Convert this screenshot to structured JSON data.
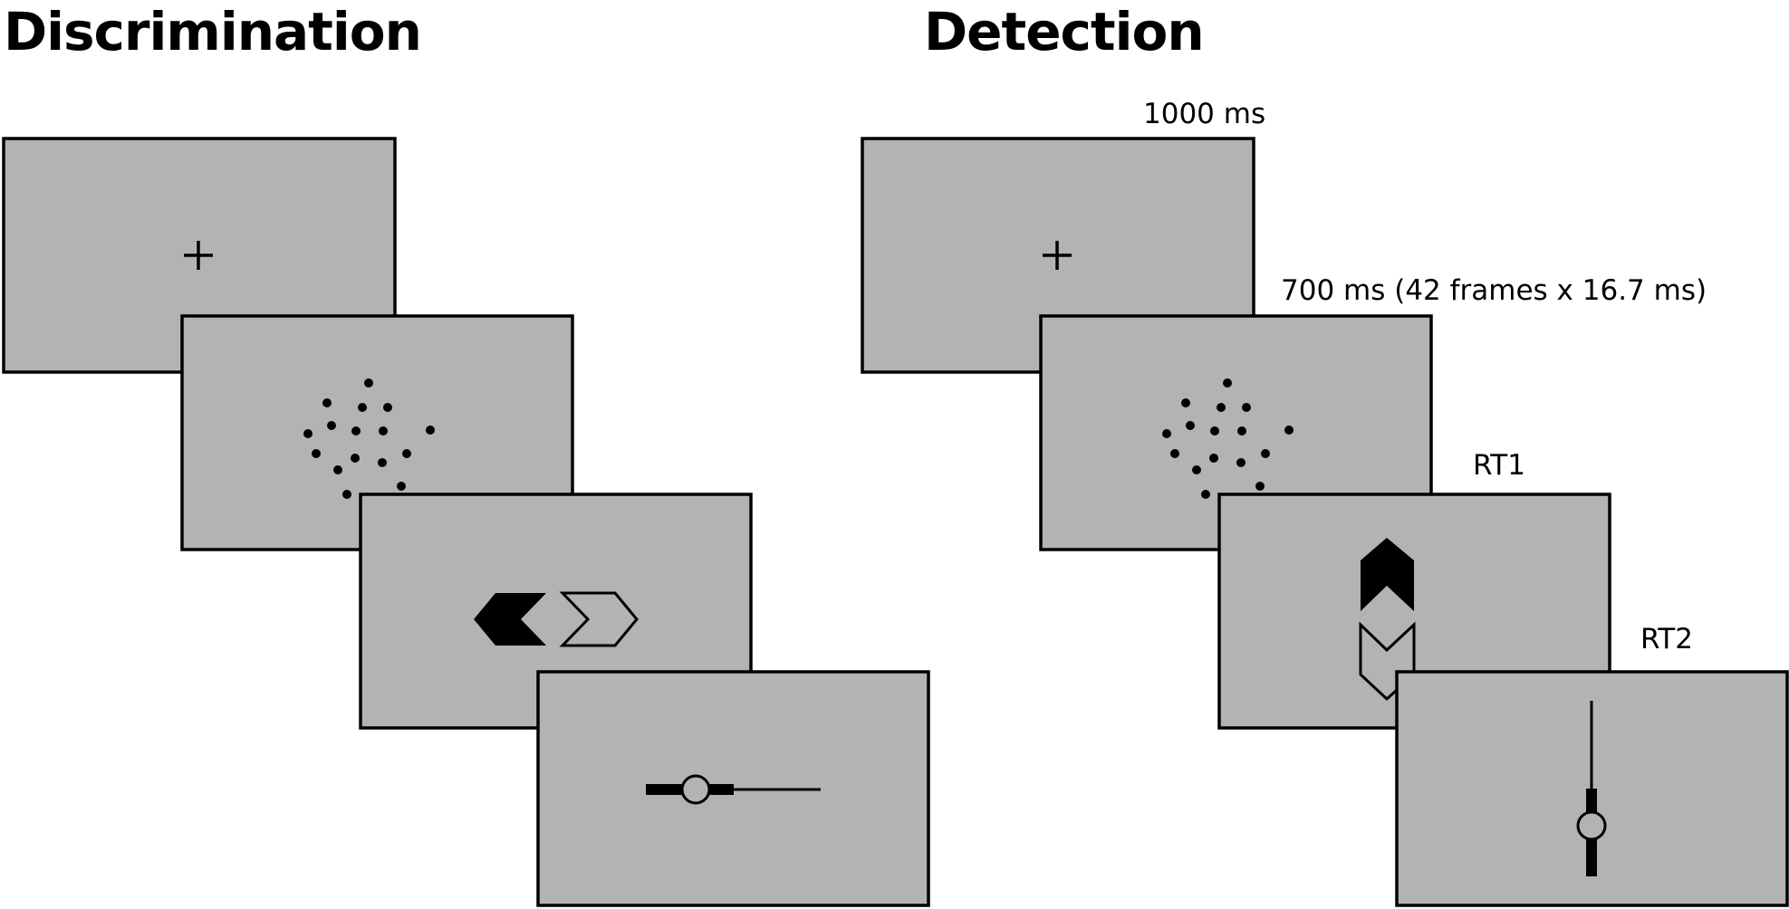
{
  "discrimination": {
    "title": "Discrimination"
  },
  "detection": {
    "title": "Detection",
    "labels": {
      "fixation_duration": "1000 ms",
      "stimulus_duration": "700 ms (42 frames x 16.7 ms)",
      "response1": "RT1",
      "response2": "RT2"
    }
  },
  "colors": {
    "screen_fill": "#b3b3b3",
    "stroke": "#000000",
    "background": "#ffffff"
  },
  "icons": {
    "fixation": "plus-cross",
    "stimulus": "dot-cloud",
    "choice_left": "filled-left-chevron",
    "choice_right": "outline-right-chevron",
    "choice_up": "filled-up-chevron",
    "choice_down": "outline-down-chevron",
    "confidence_scale": "slider-with-circle"
  }
}
